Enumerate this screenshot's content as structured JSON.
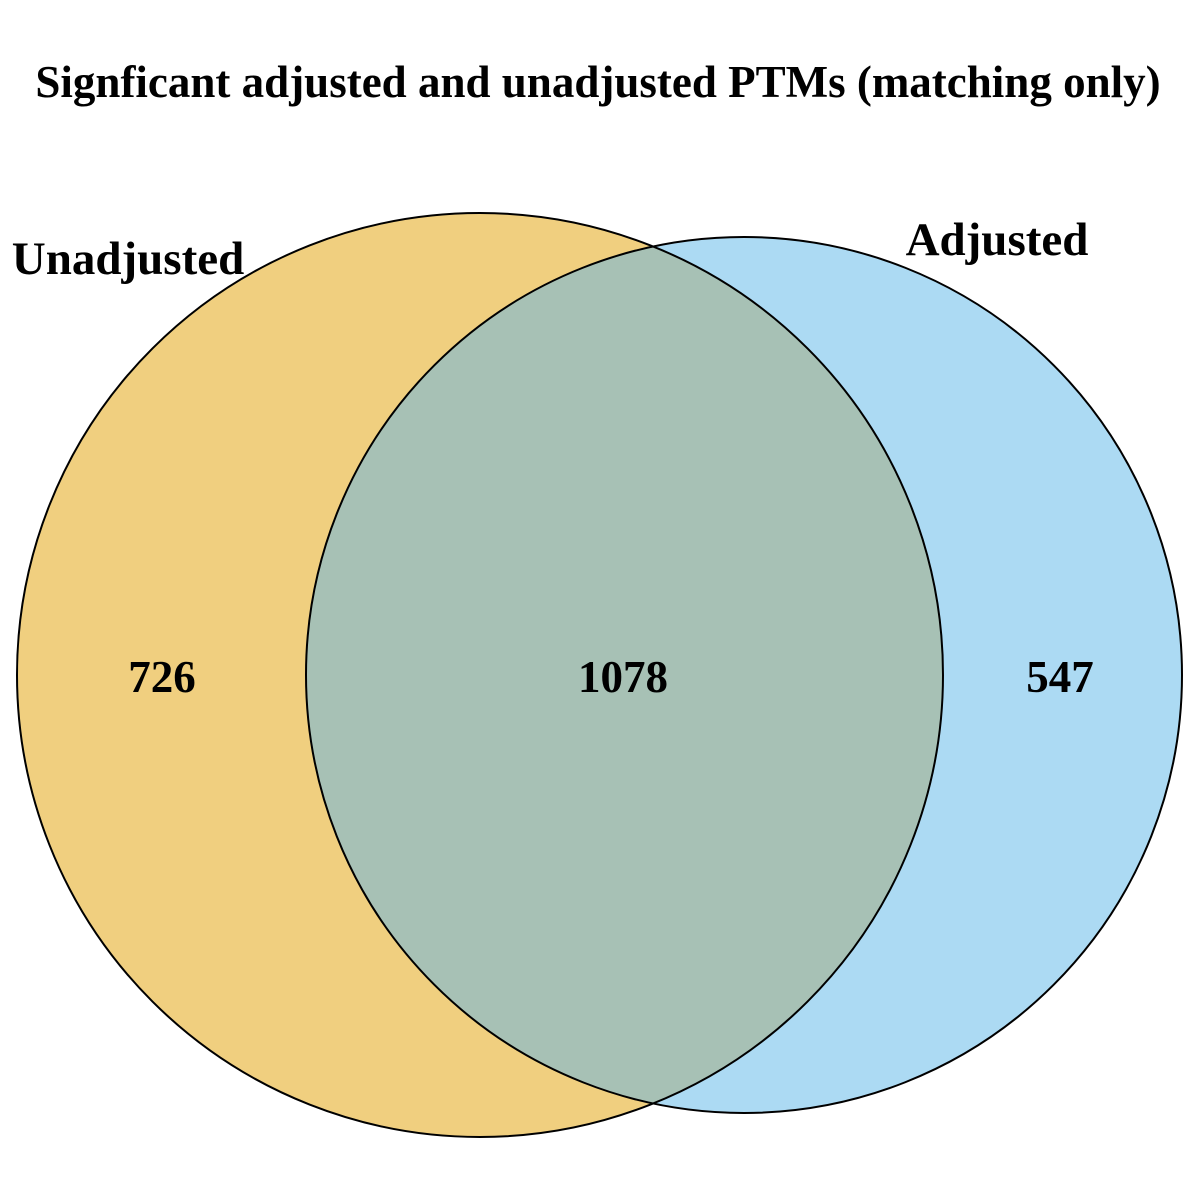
{
  "title": "Signficant adjusted and unadjusted PTMs (matching only)",
  "sets": [
    {
      "name": "Unadjusted",
      "color": "#F0CF7F"
    },
    {
      "name": "Adjusted",
      "color": "#ACDAF3"
    }
  ],
  "overlap_color": "#A7C1B5",
  "outline_color": "#000000",
  "counts": {
    "unadjusted_only": "726",
    "both": "1078",
    "adjusted_only": "547"
  }
}
